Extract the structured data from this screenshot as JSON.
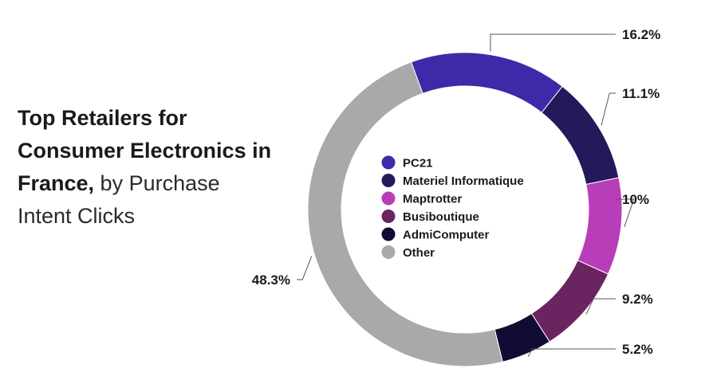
{
  "chart_data": {
    "type": "pie",
    "title_bold": "Top Retailers for Consumer Electronics in France,",
    "title_light": " by Purchase Intent Clicks",
    "categories": [
      "PC21",
      "Materiel Informatique",
      "Maptrotter",
      "Busiboutique",
      "AdmiComputer",
      "Other"
    ],
    "values": [
      16.2,
      11.1,
      10,
      9.2,
      5.2,
      48.3
    ],
    "labels": [
      "16.2%",
      "11.1%",
      "10%",
      "9.2%",
      "5.2%",
      "48.3%"
    ],
    "colors": [
      "#3d2aa8",
      "#231a5c",
      "#b83db8",
      "#6a2460",
      "#120b33",
      "#a9a9a9"
    ],
    "legend": "center"
  }
}
